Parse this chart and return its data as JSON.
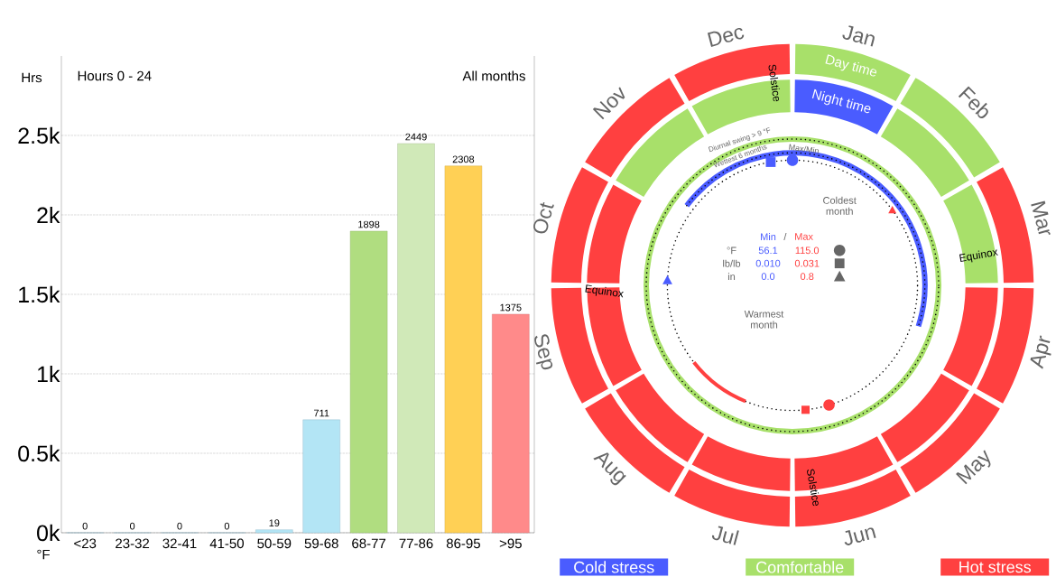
{
  "chart_data": [
    {
      "type": "bar",
      "title": "Hours 0 - 24",
      "subtitle": "All months",
      "xlabel": "°F",
      "ylabel": "Hrs",
      "categories": [
        "<23",
        "23-32",
        "32-41",
        "41-50",
        "50-59",
        "59-68",
        "68-77",
        "77-86",
        "86-95",
        ">95"
      ],
      "values": [
        0,
        0,
        0,
        0,
        19,
        711,
        1898,
        2449,
        2308,
        1375
      ],
      "colors": [
        "#b3e5f5",
        "#b3e5f5",
        "#b3e5f5",
        "#b3e5f5",
        "#b3e5f5",
        "#b3e5f5",
        "#b0dd80",
        "#d0e9b8",
        "#ffd055",
        "#ff8a8a"
      ],
      "ylim": [
        0,
        3000
      ],
      "yticks": [
        {
          "value": 0,
          "label": "0k"
        },
        {
          "value": 500,
          "label": "0.5k"
        },
        {
          "value": 1000,
          "label": "1k"
        },
        {
          "value": 1500,
          "label": "1.5k"
        },
        {
          "value": 2000,
          "label": "2k"
        },
        {
          "value": 2500,
          "label": "2.5k"
        }
      ],
      "grid": "y",
      "data_labels": true
    },
    {
      "type": "other",
      "categories": [
        "Jan",
        "Feb",
        "Mar",
        "Apr",
        "May",
        "Jun",
        "Jul",
        "Aug",
        "Sep",
        "Oct",
        "Nov",
        "Dec"
      ],
      "colors": [
        "#4a5cff",
        "#a8e06a",
        "#ff4040"
      ],
      "annotations": [
        "Solstice",
        "Solstice",
        "Equinox",
        "Equinox",
        "Diurnal swing > 9 °F",
        "Wettest 6 months",
        "Max/Min",
        "Coldest month",
        "Warmest month",
        "Min",
        "/",
        "Max",
        "°F",
        "56.1",
        "115.0",
        "lb/lb",
        "0.010",
        "0.031",
        "in",
        "0.0",
        "0.8",
        "Cold stress",
        "Comfortable",
        "Hot stress",
        "Day time",
        "Night time"
      ]
    }
  ]
}
